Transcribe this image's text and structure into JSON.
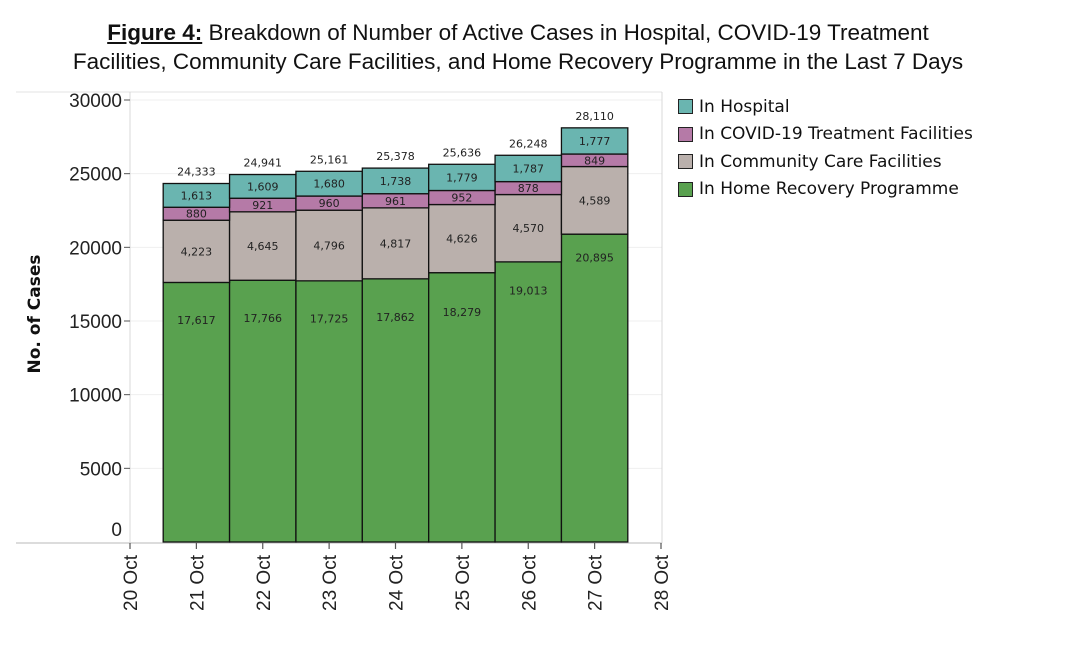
{
  "title": {
    "figure_label": "Figure 4:",
    "text_line1": " Breakdown of Number of Active Cases in Hospital, COVID-19 Treatment",
    "text_line2": "Facilities, Community Care Facilities, and Home Recovery Programme in the Last 7 Days"
  },
  "legend": {
    "items": [
      {
        "label": "In Hospital",
        "color": "#6ab5b0"
      },
      {
        "label": "In COVID-19 Treatment Facilities",
        "color": "#b57aa7"
      },
      {
        "label": "In Community Care Facilities",
        "color": "#bab0ac"
      },
      {
        "label": "In Home Recovery Programme",
        "color": "#59a14f"
      }
    ]
  },
  "chart_data": {
    "type": "bar",
    "stacked": true,
    "title": "Figure 4: Breakdown of Number of Active Cases in Hospital, COVID-19 Treatment Facilities, Community Care Facilities, and Home Recovery Programme in the Last 7 Days",
    "xlabel": "",
    "ylabel": "No. of Cases",
    "ylim": [
      0,
      30000
    ],
    "yticks": [
      0,
      5000,
      10000,
      15000,
      20000,
      25000,
      30000
    ],
    "ytick_labels": [
      "0",
      "5000",
      "10000",
      "15000",
      "20000",
      "25000",
      "30000"
    ],
    "xticks": [
      "20 Oct",
      "21 Oct",
      "22 Oct",
      "23 Oct",
      "24 Oct",
      "25 Oct",
      "26 Oct",
      "27 Oct",
      "28 Oct"
    ],
    "categories": [
      "21 Oct",
      "22 Oct",
      "23 Oct",
      "24 Oct",
      "25 Oct",
      "26 Oct",
      "27 Oct"
    ],
    "grid": true,
    "legend_position": "right",
    "series": [
      {
        "name": "In Home Recovery Programme",
        "color": "#59a14f",
        "label_color": "#ffffff",
        "values": [
          17617,
          17766,
          17725,
          17862,
          18279,
          19013,
          20895
        ],
        "labels": [
          "17,617",
          "17,766",
          "17,725",
          "17,862",
          "18,279",
          "19,013",
          "20,895"
        ]
      },
      {
        "name": "In Community Care Facilities",
        "color": "#bab0ac",
        "label_color": "#222222",
        "values": [
          4223,
          4645,
          4796,
          4817,
          4626,
          4570,
          4589
        ],
        "labels": [
          "4,223",
          "4,645",
          "4,796",
          "4,817",
          "4,626",
          "4,570",
          "4,589"
        ]
      },
      {
        "name": "In COVID-19 Treatment Facilities",
        "color": "#b57aa7",
        "label_color": "#3a2238",
        "values": [
          880,
          921,
          960,
          961,
          952,
          878,
          849
        ],
        "labels": [
          "880",
          "921",
          "960",
          "961",
          "952",
          "878",
          "849"
        ]
      },
      {
        "name": "In Hospital",
        "color": "#6ab5b0",
        "label_color": "#1e3a38",
        "values": [
          1613,
          1609,
          1680,
          1738,
          1779,
          1787,
          1777
        ],
        "labels": [
          "1,613",
          "1,609",
          "1,680",
          "1,738",
          "1,779",
          "1,787",
          "1,777"
        ]
      }
    ],
    "totals": [
      24333,
      24941,
      25161,
      25378,
      25636,
      26248,
      28110
    ],
    "total_labels": [
      "24,333",
      "24,941",
      "25,161",
      "25,378",
      "25,636",
      "26,248",
      "28,110"
    ]
  }
}
